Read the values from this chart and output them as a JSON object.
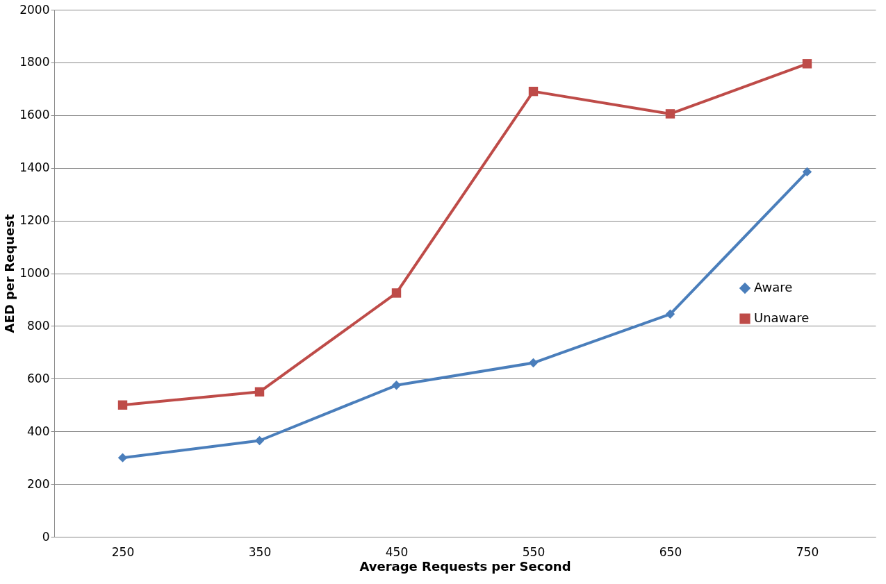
{
  "chart_data": {
    "type": "line",
    "xlabel": "Average Requests per Second",
    "ylabel": "AED per Request",
    "categories": [
      "250",
      "350",
      "450",
      "550",
      "650",
      "750"
    ],
    "series": [
      {
        "name": "Aware",
        "color": "#4a7ebb",
        "marker": "diamond",
        "values": [
          300,
          365,
          575,
          660,
          845,
          1385
        ]
      },
      {
        "name": "Unaware",
        "color": "#be4b48",
        "marker": "square",
        "values": [
          500,
          550,
          925,
          1690,
          1605,
          1795
        ]
      }
    ],
    "ylim": [
      0,
      2000
    ],
    "yticks": [
      0,
      200,
      400,
      600,
      800,
      1000,
      1200,
      1400,
      1600,
      1800,
      2000
    ],
    "grid": "y",
    "legend": "right",
    "line_style": "solid"
  }
}
